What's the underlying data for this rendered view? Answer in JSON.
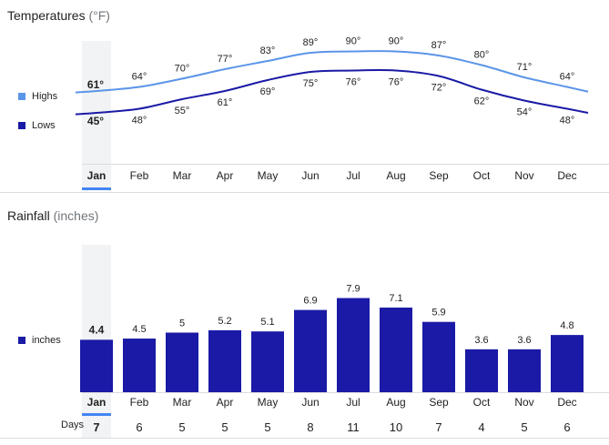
{
  "temperatures": {
    "title": "Temperatures",
    "unit": "(°F)",
    "legend": [
      {
        "label": "Highs",
        "color": "#5b95e8"
      },
      {
        "label": "Lows",
        "color": "#1a1aa6"
      }
    ]
  },
  "rainfall": {
    "title": "Rainfall",
    "unit": "(inches)",
    "legend": [
      {
        "label": "inches",
        "color": "#1a1aa6"
      }
    ]
  },
  "days": {
    "label": "Days",
    "values": [
      7,
      6,
      5,
      5,
      5,
      8,
      11,
      10,
      7,
      4,
      5,
      6
    ]
  },
  "selected_month": "Jan",
  "chart_data": [
    {
      "type": "line",
      "title": "Temperatures (°F)",
      "categories": [
        "Jan",
        "Feb",
        "Mar",
        "Apr",
        "May",
        "Jun",
        "Jul",
        "Aug",
        "Sep",
        "Oct",
        "Nov",
        "Dec"
      ],
      "series": [
        {
          "name": "Highs",
          "values": [
            61,
            64,
            70,
            77,
            83,
            89,
            90,
            90,
            87,
            80,
            71,
            64
          ],
          "labels": [
            "61°",
            "64°",
            "70°",
            "77°",
            "83°",
            "89°",
            "90°",
            "90°",
            "87°",
            "80°",
            "71°",
            "64°"
          ]
        },
        {
          "name": "Lows",
          "values": [
            45,
            48,
            55,
            61,
            69,
            75,
            76,
            76,
            72,
            62,
            54,
            48
          ],
          "labels": [
            "45°",
            "48°",
            "55°",
            "61°",
            "69°",
            "75°",
            "76°",
            "76°",
            "72°",
            "62°",
            "54°",
            "48°"
          ]
        }
      ]
    },
    {
      "type": "bar",
      "title": "Rainfall (inches)",
      "categories": [
        "Jan",
        "Feb",
        "Mar",
        "Apr",
        "May",
        "Jun",
        "Jul",
        "Aug",
        "Sep",
        "Oct",
        "Nov",
        "Dec"
      ],
      "values": [
        4.4,
        4.5,
        5,
        5.2,
        5.1,
        6.9,
        7.9,
        7.1,
        5.9,
        3.6,
        3.6,
        4.8
      ],
      "labels": [
        "4.4",
        "4.5",
        "5",
        "5.2",
        "5.1",
        "6.9",
        "7.9",
        "7.1",
        "5.9",
        "3.6",
        "3.6",
        "4.8"
      ],
      "ylim": [
        0,
        9
      ]
    }
  ]
}
